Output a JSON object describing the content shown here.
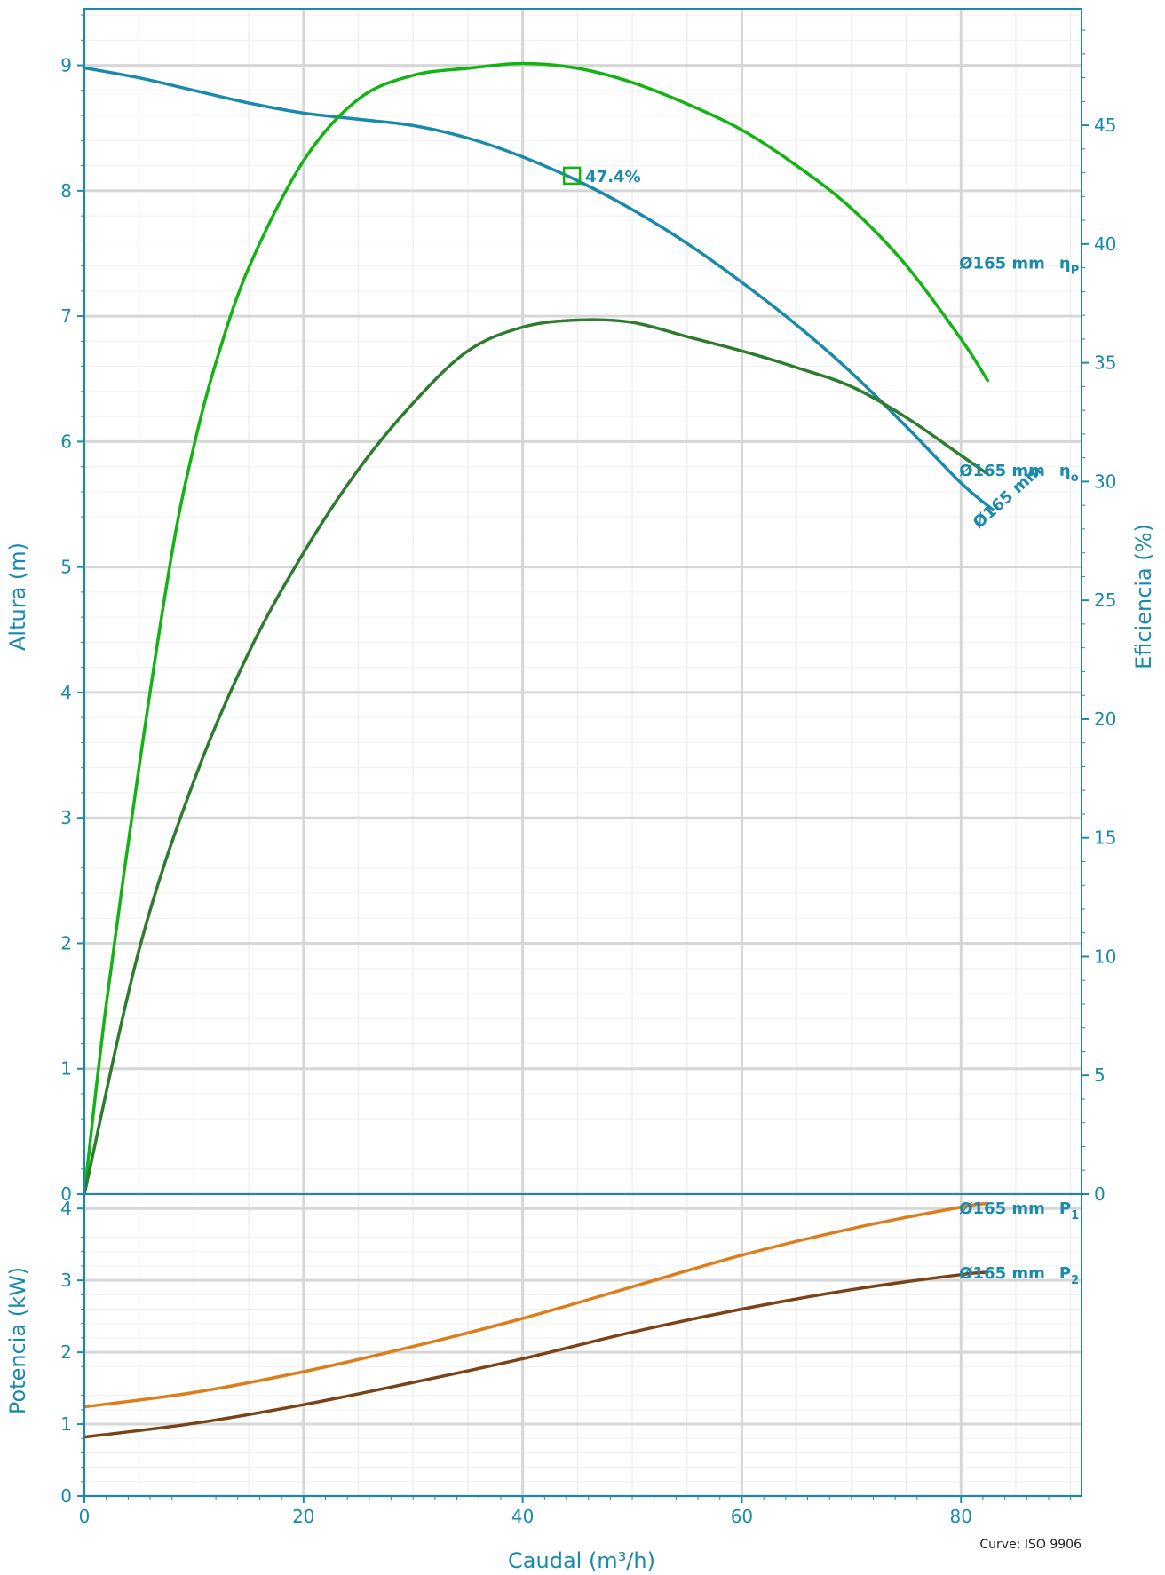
{
  "chart_data": [
    {
      "type": "line",
      "xlabel": "",
      "ylabel": "Altura (m)",
      "y2label": "Eficiencia (%)",
      "xlim": [
        0,
        91
      ],
      "ylim": [
        0,
        9.45
      ],
      "y2lim": [
        0,
        49.9
      ],
      "x_ticks": [
        "0",
        "20",
        "40",
        "60",
        "80"
      ],
      "y_ticks": [
        "0",
        "1",
        "2",
        "3",
        "4",
        "5",
        "6",
        "7",
        "8",
        "9"
      ],
      "y2_ticks": [
        "0",
        "5",
        "10",
        "15",
        "20",
        "25",
        "30",
        "35",
        "40",
        "45"
      ],
      "grid": true,
      "series": [
        {
          "name": "Ø165 mm",
          "axis": "head",
          "color": "#1a8aab",
          "x": [
            0,
            5,
            10,
            15,
            20,
            25,
            30,
            35,
            40,
            45,
            50,
            55,
            60,
            65,
            70,
            75,
            80,
            83
          ],
          "y": [
            8.98,
            8.9,
            8.8,
            8.7,
            8.62,
            8.57,
            8.52,
            8.42,
            8.27,
            8.08,
            7.85,
            7.58,
            7.27,
            6.93,
            6.55,
            6.12,
            5.67,
            5.45
          ]
        },
        {
          "name": "Ø165 mm  ηP",
          "axis": "efficiency",
          "color": "#12b312",
          "x": [
            0,
            2,
            5,
            8,
            10,
            12,
            15,
            20,
            25,
            30,
            35,
            40,
            45,
            50,
            55,
            60,
            65,
            70,
            75,
            80,
            82.5
          ],
          "y": [
            0,
            8,
            18,
            27,
            31.5,
            35,
            39,
            43.5,
            46.1,
            47.1,
            47.4,
            47.6,
            47.4,
            46.8,
            45.9,
            44.8,
            43.3,
            41.5,
            39.1,
            36,
            34.2
          ]
        },
        {
          "name": "Ø165 mm  ηo",
          "axis": "efficiency",
          "color": "#2e7d2e",
          "x": [
            0,
            5,
            10,
            15,
            20,
            25,
            30,
            35,
            40,
            45,
            50,
            55,
            60,
            65,
            70,
            75,
            80,
            82.5
          ],
          "y": [
            0,
            10.3,
            17.4,
            22.8,
            27,
            30.5,
            33.3,
            35.5,
            36.5,
            36.8,
            36.7,
            36.1,
            35.5,
            34.8,
            34,
            32.7,
            31.1,
            30.3
          ]
        }
      ],
      "annotations": [
        {
          "text": "47.4%",
          "x": 44.5,
          "y": 8.12,
          "marker": "square"
        }
      ]
    },
    {
      "type": "line",
      "xlabel": "Caudal (m³/h)",
      "ylabel": "Potencia (kW)",
      "xlim": [
        0,
        91
      ],
      "ylim": [
        0,
        4.2
      ],
      "x_ticks": [
        "0",
        "20",
        "40",
        "60",
        "80"
      ],
      "y_ticks": [
        "0",
        "1",
        "2",
        "3",
        "4"
      ],
      "grid": true,
      "series": [
        {
          "name": "Ø165 mm  P1",
          "color": "#de7d1c",
          "x": [
            0,
            10,
            20,
            30,
            40,
            50,
            60,
            70,
            80,
            82.5
          ],
          "y": [
            1.24,
            1.44,
            1.73,
            2.08,
            2.47,
            2.91,
            3.35,
            3.72,
            4.02,
            4.07
          ]
        },
        {
          "name": "Ø165 mm  P2",
          "color": "#7a4419",
          "x": [
            0,
            10,
            20,
            30,
            40,
            50,
            60,
            70,
            80,
            82.5
          ],
          "y": [
            0.82,
            1.01,
            1.27,
            1.58,
            1.91,
            2.28,
            2.6,
            2.87,
            3.08,
            3.11
          ]
        }
      ]
    }
  ],
  "footnote": "Curve: ISO 9906",
  "colors": {
    "axis": "#1a8aab",
    "grid_major": "#d6d6d6",
    "grid_minor": "#efefef"
  }
}
